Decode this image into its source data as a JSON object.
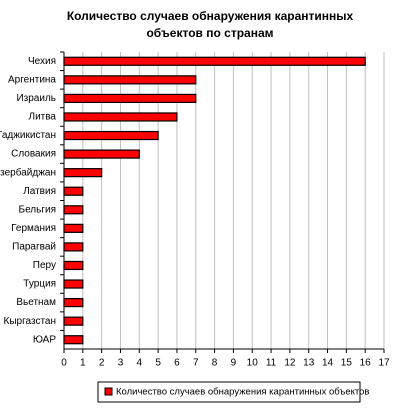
{
  "chart_data": {
    "type": "bar",
    "orientation": "horizontal",
    "title": "Количество случаев обнаружения карантинных объектов по странам",
    "categories": [
      "Чехия",
      "Аргентина",
      "Израиль",
      "Литва",
      "Таджикистан",
      "Словакия",
      "Азербайджан",
      "Латвия",
      "Бельгия",
      "Германия",
      "Парагвай",
      "Перу",
      "Турция",
      "Вьетнам",
      "Кыргазстан",
      "ЮАР"
    ],
    "series": [
      {
        "name": "Количество случаев обнаружения карантинных объектов",
        "color": "#ff0000",
        "values": [
          16,
          7,
          7,
          6,
          5,
          4,
          2,
          1,
          1,
          1,
          1,
          1,
          1,
          1,
          1,
          1
        ]
      }
    ],
    "xlim": [
      0,
      17
    ],
    "xticks": [
      0,
      1,
      2,
      3,
      4,
      5,
      6,
      7,
      8,
      9,
      10,
      11,
      12,
      13,
      14,
      15,
      16,
      17
    ],
    "grid": true,
    "legend": "bottom"
  }
}
